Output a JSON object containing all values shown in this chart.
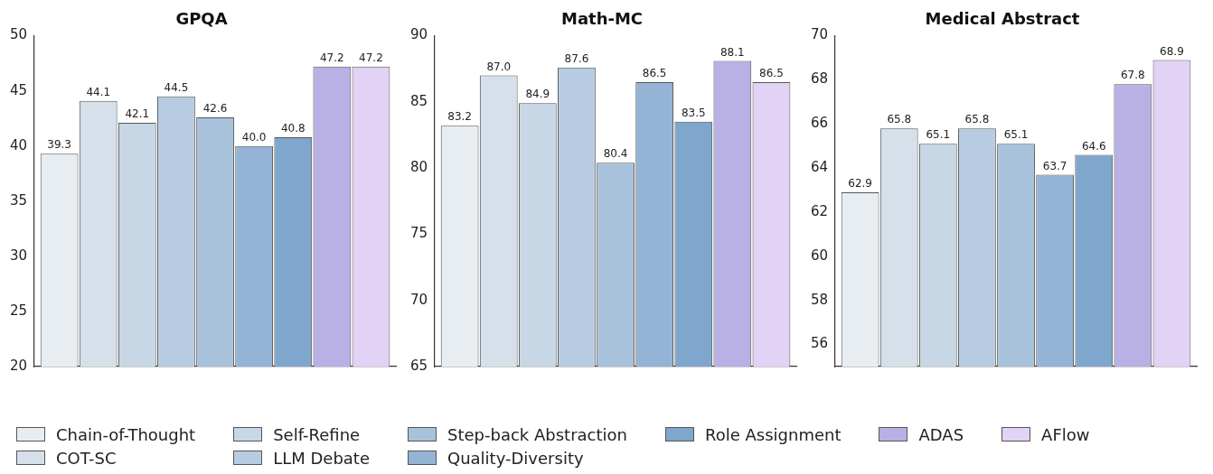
{
  "chart_data": [
    {
      "type": "bar",
      "title": "GPQA",
      "categories": [
        null
      ],
      "ylim": [
        20,
        50
      ],
      "yticks": [
        20,
        25,
        30,
        35,
        40,
        45,
        50
      ],
      "grid": false,
      "legend": "bottom",
      "series": [
        {
          "name": "Chain-of-Thought",
          "color": "#e8edf2",
          "values": [
            39.3
          ],
          "value_labels": [
            "39.3"
          ]
        },
        {
          "name": "COT-SC",
          "color": "#d5e0ea",
          "values": [
            44.1
          ],
          "value_labels": [
            "44.1"
          ]
        },
        {
          "name": "Self-Refine",
          "color": "#c8d7e6",
          "values": [
            42.1
          ],
          "value_labels": [
            "42.1"
          ]
        },
        {
          "name": "LLM Debate",
          "color": "#b7cce2",
          "values": [
            44.5
          ],
          "value_labels": [
            "44.5"
          ]
        },
        {
          "name": "Step-back Abstraction",
          "color": "#a9c2dc",
          "values": [
            42.6
          ],
          "value_labels": [
            "42.6"
          ]
        },
        {
          "name": "Quality-Diversity",
          "color": "#95b4d5",
          "values": [
            40.0
          ],
          "value_labels": [
            "40.0"
          ]
        },
        {
          "name": "Role Assignment",
          "color": "#7fa6cc",
          "values": [
            40.8
          ],
          "value_labels": [
            "40.8"
          ]
        },
        {
          "name": "ADAS",
          "color": "#b9b0e6",
          "values": [
            47.2
          ],
          "value_labels": [
            "47.2"
          ]
        },
        {
          "name": "AFlow",
          "color": "#e2d2f5",
          "values": [
            47.2
          ],
          "value_labels": [
            "47.2"
          ]
        }
      ]
    },
    {
      "type": "bar",
      "title": "Math-MC",
      "categories": [
        null
      ],
      "ylim": [
        65,
        90
      ],
      "yticks": [
        65,
        70,
        75,
        80,
        85,
        90
      ],
      "grid": false,
      "series": [
        {
          "color": "#e8edf2",
          "values": [
            83.2
          ],
          "value_labels": [
            "83.2"
          ]
        },
        {
          "color": "#d5e0ea",
          "values": [
            87.0
          ],
          "value_labels": [
            "87.0"
          ]
        },
        {
          "color": "#c8d7e6",
          "values": [
            84.9
          ],
          "value_labels": [
            "84.9"
          ]
        },
        {
          "color": "#b7cce2",
          "values": [
            87.6
          ],
          "value_labels": [
            "87.6"
          ]
        },
        {
          "color": "#a9c2dc",
          "values": [
            80.4
          ],
          "value_labels": [
            "80.4"
          ]
        },
        {
          "color": "#95b4d5",
          "values": [
            86.5
          ],
          "value_labels": [
            "86.5"
          ]
        },
        {
          "color": "#7fa6cc",
          "values": [
            83.5
          ],
          "value_labels": [
            "83.5"
          ]
        },
        {
          "color": "#b9b0e6",
          "values": [
            88.1
          ],
          "value_labels": [
            "88.1"
          ]
        },
        {
          "color": "#e2d2f5",
          "values": [
            86.5
          ],
          "value_labels": [
            "86.5"
          ]
        }
      ]
    },
    {
      "type": "bar",
      "title": "Medical Abstract",
      "categories": [
        null
      ],
      "ylim": [
        55,
        70
      ],
      "yticks": [
        56,
        58,
        60,
        62,
        64,
        66,
        68,
        70
      ],
      "grid": false,
      "series": [
        {
          "color": "#e8edf2",
          "values": [
            62.9
          ],
          "value_labels": [
            "62.9"
          ]
        },
        {
          "color": "#d5e0ea",
          "values": [
            65.8
          ],
          "value_labels": [
            "65.8"
          ]
        },
        {
          "color": "#c8d7e6",
          "values": [
            65.1
          ],
          "value_labels": [
            "65.1"
          ]
        },
        {
          "color": "#b7cce2",
          "values": [
            65.8
          ],
          "value_labels": [
            "65.8"
          ]
        },
        {
          "color": "#a9c2dc",
          "values": [
            65.1
          ],
          "value_labels": [
            "65.1"
          ]
        },
        {
          "color": "#95b4d5",
          "values": [
            63.7
          ],
          "value_labels": [
            "63.7"
          ]
        },
        {
          "color": "#7fa6cc",
          "values": [
            64.6
          ],
          "value_labels": [
            "64.6"
          ]
        },
        {
          "color": "#b9b0e6",
          "values": [
            67.8
          ],
          "value_labels": [
            "67.8"
          ]
        },
        {
          "color": "#e2d2f5",
          "values": [
            68.9
          ],
          "value_labels": [
            "68.9"
          ]
        }
      ]
    }
  ]
}
